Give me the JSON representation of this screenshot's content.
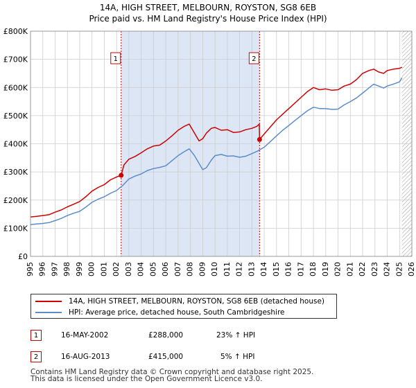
{
  "title_line1": "14A, HIGH STREET, MELBOURN, ROYSTON, SG8 6EB",
  "title_line2": "Price paid vs. HM Land Registry's House Price Index (HPI)",
  "colors": {
    "property": "#cc0000",
    "hpi": "#5b8cc8",
    "shade": "#dde6f5",
    "grid": "#cccccc"
  },
  "chart_data": {
    "type": "line",
    "title": "Price paid vs. HM Land Registry's House Price Index (HPI)",
    "xlabel": "",
    "ylabel": "",
    "xlim": [
      1995,
      2026
    ],
    "ylim": [
      0,
      800000
    ],
    "x_ticks": [
      "1995",
      "1996",
      "1997",
      "1998",
      "1999",
      "2000",
      "2001",
      "2002",
      "2003",
      "2004",
      "2005",
      "2006",
      "2007",
      "2008",
      "2009",
      "2010",
      "2011",
      "2012",
      "2013",
      "2014",
      "2015",
      "2016",
      "2017",
      "2018",
      "2019",
      "2020",
      "2021",
      "2022",
      "2023",
      "2024",
      "2025",
      "2026"
    ],
    "y_ticks": [
      {
        "value": 0,
        "label": "£0"
      },
      {
        "value": 100000,
        "label": "£100K"
      },
      {
        "value": 200000,
        "label": "£200K"
      },
      {
        "value": 300000,
        "label": "£300K"
      },
      {
        "value": 400000,
        "label": "£400K"
      },
      {
        "value": 500000,
        "label": "£500K"
      },
      {
        "value": 600000,
        "label": "£600K"
      },
      {
        "value": 700000,
        "label": "£700K"
      },
      {
        "value": 800000,
        "label": "£800K"
      }
    ],
    "shaded_range": [
      2002.37,
      2013.62
    ],
    "hatched_from": 2025.2,
    "series": [
      {
        "name": "14A, HIGH STREET, MELBOURN, ROYSTON, SG8 6EB (detached house)",
        "color": "#cc0000",
        "x": [
          1995,
          1995.5,
          1996,
          1996.5,
          1997,
          1997.5,
          1998,
          1998.5,
          1999,
          1999.5,
          2000,
          2000.5,
          2001,
          2001.5,
          2002,
          2002.37,
          2002.6,
          2003,
          2003.5,
          2004,
          2004.5,
          2005,
          2005.5,
          2006,
          2006.5,
          2007,
          2007.5,
          2007.9,
          2008.3,
          2008.7,
          2009,
          2009.3,
          2009.7,
          2010,
          2010.5,
          2011,
          2011.5,
          2012,
          2012.5,
          2013,
          2013.4,
          2013.6,
          2013.62,
          2014,
          2014.5,
          2015,
          2015.5,
          2016,
          2016.5,
          2017,
          2017.5,
          2018,
          2018.5,
          2019,
          2019.5,
          2020,
          2020.5,
          2021,
          2021.5,
          2022,
          2022.5,
          2022.9,
          2023.3,
          2023.7,
          2024,
          2024.5,
          2025,
          2025.2
        ],
        "y": [
          140000,
          142000,
          145000,
          148000,
          157000,
          165000,
          176000,
          185000,
          195000,
          212000,
          232000,
          245000,
          255000,
          272000,
          282000,
          288000,
          325000,
          345000,
          355000,
          368000,
          382000,
          392000,
          395000,
          410000,
          428000,
          448000,
          462000,
          470000,
          440000,
          410000,
          418000,
          438000,
          455000,
          458000,
          448000,
          450000,
          440000,
          442000,
          450000,
          455000,
          462000,
          470000,
          415000,
          435000,
          460000,
          485000,
          505000,
          525000,
          545000,
          565000,
          585000,
          600000,
          592000,
          595000,
          590000,
          592000,
          605000,
          612000,
          628000,
          650000,
          660000,
          665000,
          655000,
          650000,
          660000,
          665000,
          668000,
          672000
        ]
      },
      {
        "name": "HPI: Average price, detached house, South Cambridgeshire",
        "color": "#5b8cc8",
        "x": [
          1995,
          1995.5,
          1996,
          1996.5,
          1997,
          1997.5,
          1998,
          1998.5,
          1999,
          1999.5,
          2000,
          2000.5,
          2001,
          2001.5,
          2002,
          2002.5,
          2003,
          2003.5,
          2004,
          2004.5,
          2005,
          2005.5,
          2006,
          2006.5,
          2007,
          2007.5,
          2007.9,
          2008.3,
          2008.7,
          2009,
          2009.3,
          2009.7,
          2010,
          2010.5,
          2011,
          2011.5,
          2012,
          2012.5,
          2013,
          2013.5,
          2014,
          2014.5,
          2015,
          2015.5,
          2016,
          2016.5,
          2017,
          2017.5,
          2018,
          2018.5,
          2019,
          2019.5,
          2020,
          2020.5,
          2021,
          2021.5,
          2022,
          2022.5,
          2022.9,
          2023.3,
          2023.7,
          2024,
          2024.5,
          2025,
          2025.2
        ],
        "y": [
          113000,
          115000,
          117000,
          120000,
          127000,
          135000,
          145000,
          153000,
          160000,
          175000,
          192000,
          203000,
          212000,
          224000,
          234000,
          252000,
          275000,
          285000,
          293000,
          305000,
          312000,
          316000,
          322000,
          340000,
          358000,
          372000,
          382000,
          360000,
          330000,
          308000,
          315000,
          342000,
          358000,
          362000,
          356000,
          357000,
          352000,
          356000,
          365000,
          375000,
          388000,
          408000,
          428000,
          448000,
          465000,
          483000,
          500000,
          517000,
          530000,
          525000,
          525000,
          522000,
          523000,
          538000,
          550000,
          563000,
          580000,
          598000,
          612000,
          605000,
          598000,
          605000,
          612000,
          620000,
          635000
        ]
      }
    ],
    "sales": [
      {
        "label": "1",
        "year": 2002.37,
        "price": 288000
      },
      {
        "label": "2",
        "year": 2013.62,
        "price": 415000
      }
    ]
  },
  "legend": {
    "property": "14A, HIGH STREET, MELBOURN, ROYSTON, SG8 6EB (detached house)",
    "hpi": "HPI: Average price, detached house, South Cambridgeshire"
  },
  "transactions": [
    {
      "num": "1",
      "date": "16-MAY-2002",
      "price": "£288,000",
      "hpi": "23% ↑ HPI"
    },
    {
      "num": "2",
      "date": "16-AUG-2013",
      "price": "£415,000",
      "hpi": "5% ↑ HPI"
    }
  ],
  "footer": {
    "line1": "Contains HM Land Registry data © Crown copyright and database right 2025.",
    "line2": "This data is licensed under the Open Government Licence v3.0."
  }
}
